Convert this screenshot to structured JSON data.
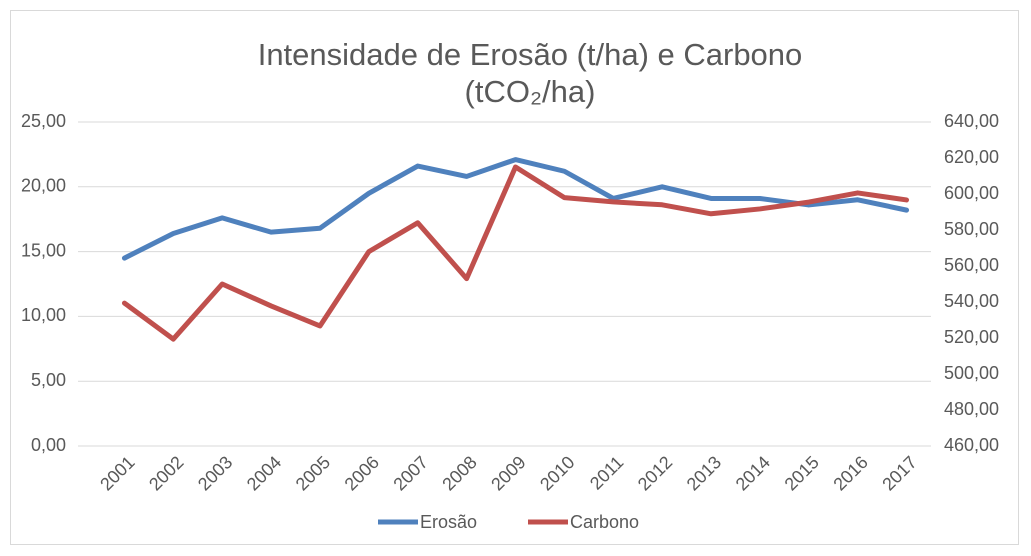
{
  "chart_data": {
    "type": "line",
    "title": "Intensidade de Erosão (t/ha) e Carbono (tCO₂/ha)",
    "categories": [
      "2001",
      "2002",
      "2003",
      "2004",
      "2005",
      "2006",
      "2007",
      "2008",
      "2009",
      "2010",
      "2011",
      "2012",
      "2013",
      "2014",
      "2015",
      "2016",
      "2017"
    ],
    "series": [
      {
        "name": "Erosão",
        "color": "#4f81bd",
        "values": [
          14.5,
          16.4,
          17.6,
          16.5,
          16.8,
          19.5,
          21.6,
          20.8,
          22.1,
          21.2,
          19.1,
          20.0,
          19.1,
          19.1,
          18.6,
          19.0,
          18.2
        ]
      },
      {
        "name": "Carbono",
        "color": "#c0504d",
        "axis": "y2",
        "values": [
          539.4,
          519.4,
          550,
          537.8,
          526.7,
          568,
          584,
          553,
          615,
          598,
          595.6,
          594,
          589,
          591.7,
          595.5,
          600.6,
          596.7
        ]
      }
    ],
    "ylim": [
      0,
      25
    ],
    "yticks": [
      {
        "value": 0,
        "label": "0,00"
      },
      {
        "value": 5,
        "label": "5,00"
      },
      {
        "value": 10,
        "label": "10,00"
      },
      {
        "value": 15,
        "label": "15,00"
      },
      {
        "value": 20,
        "label": "20,00"
      },
      {
        "value": 25,
        "label": "25,00"
      }
    ],
    "y2lim": [
      460,
      640
    ],
    "y2ticks": [
      {
        "value": 460,
        "label": "460,00"
      },
      {
        "value": 480,
        "label": "480,00"
      },
      {
        "value": 500,
        "label": "500,00"
      },
      {
        "value": 520,
        "label": "520,00"
      },
      {
        "value": 540,
        "label": "540,00"
      },
      {
        "value": 560,
        "label": "560,00"
      },
      {
        "value": 580,
        "label": "580,00"
      },
      {
        "value": 600,
        "label": "600,00"
      },
      {
        "value": 620,
        "label": "620,00"
      },
      {
        "value": 640,
        "label": "640,00"
      }
    ],
    "grid": true,
    "legend": "bottom"
  }
}
